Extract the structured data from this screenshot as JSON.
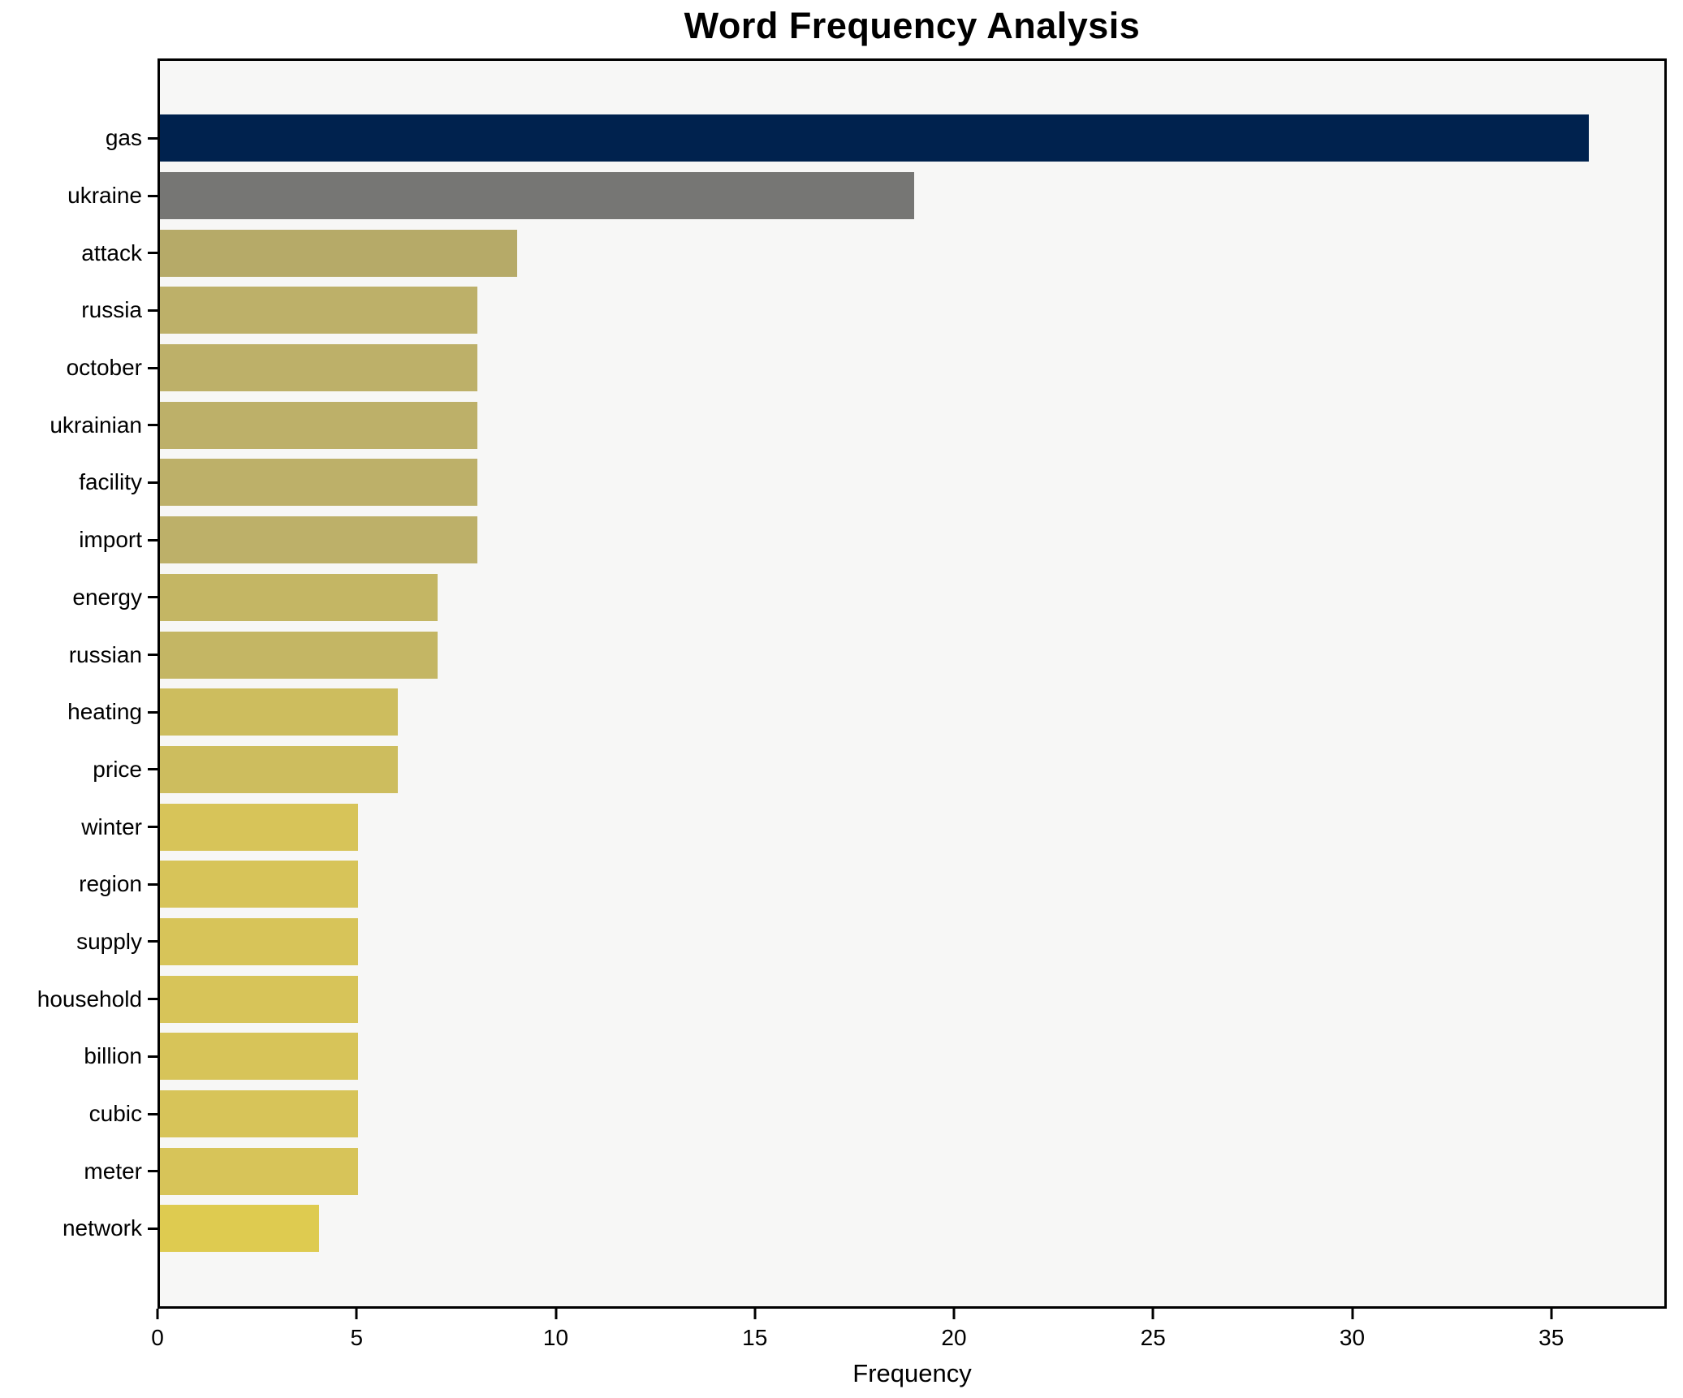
{
  "chart_data": {
    "type": "bar",
    "orientation": "horizontal",
    "title": "Word Frequency Analysis",
    "xlabel": "Frequency",
    "ylabel": "",
    "categories": [
      "gas",
      "ukraine",
      "attack",
      "russia",
      "october",
      "ukrainian",
      "facility",
      "import",
      "energy",
      "russian",
      "heating",
      "price",
      "winter",
      "region",
      "supply",
      "household",
      "billion",
      "cubic",
      "meter",
      "network"
    ],
    "values": [
      36,
      19,
      9,
      8,
      8,
      8,
      8,
      8,
      7,
      7,
      6,
      6,
      5,
      5,
      5,
      5,
      5,
      5,
      5,
      4
    ],
    "bar_colors": [
      "#00224e",
      "#767674",
      "#b6aa68",
      "#bdb069",
      "#bdb069",
      "#bdb069",
      "#bdb069",
      "#bdb069",
      "#c4b664",
      "#c4b664",
      "#cdbd5e",
      "#cdbd5e",
      "#d7c459",
      "#d7c459",
      "#d7c459",
      "#d7c459",
      "#d7c459",
      "#d7c459",
      "#d7c459",
      "#decb50"
    ],
    "xlim": [
      0,
      37.9
    ],
    "xticks": [
      0,
      5,
      10,
      15,
      20,
      25,
      30,
      35
    ],
    "grid": false,
    "legend": "none",
    "plot_background": "#f7f7f6",
    "figure_background": "#ffffff",
    "spine_color": "#000000"
  }
}
